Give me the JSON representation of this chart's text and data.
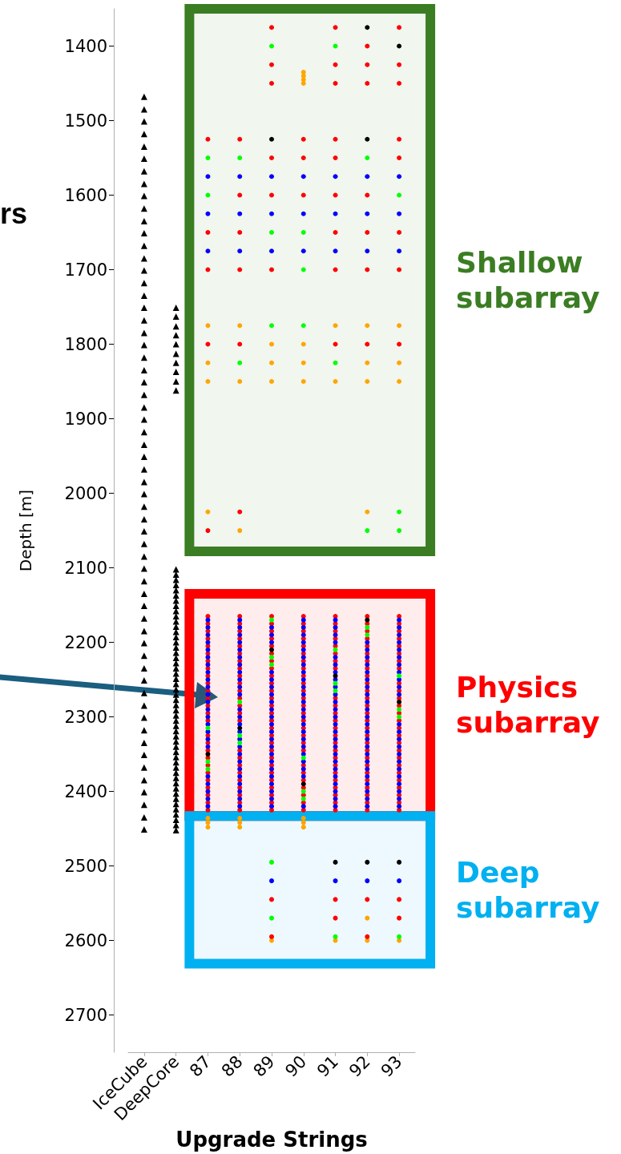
{
  "chart_data": {
    "type": "scatter",
    "xlabel": "Upgrade Strings",
    "ylabel": "Depth [m]",
    "annotations": [
      "rs"
    ],
    "categories": [
      "IceCube",
      "DeepCore",
      "87",
      "88",
      "89",
      "90",
      "91",
      "92",
      "93"
    ],
    "ylim": [
      2750,
      1350
    ],
    "yticks": [
      1400,
      1500,
      1600,
      1700,
      1800,
      1900,
      2000,
      2100,
      2200,
      2300,
      2400,
      2500,
      2600,
      2700
    ],
    "grid": false,
    "marker": "circle",
    "bands": [
      {
        "axis": "y",
        "from": 1350,
        "to": 2078,
        "label": "Shallow subarray",
        "color": "#3b7d23"
      },
      {
        "axis": "y",
        "from": 2135,
        "to": 2433,
        "label": "Physics subarray",
        "color": "#ff0000"
      },
      {
        "axis": "y",
        "from": 2433,
        "to": 2631,
        "label": "Deep subarray",
        "color": "#00b0f0"
      }
    ],
    "series": [
      {
        "color": "#000000",
        "marker": "triangle",
        "x": [
          "IceCube",
          "IceCube",
          "IceCube",
          "IceCube",
          "IceCube",
          "IceCube",
          "IceCube",
          "IceCube",
          "IceCube",
          "IceCube",
          "IceCube",
          "IceCube",
          "IceCube",
          "IceCube",
          "IceCube",
          "IceCube",
          "IceCube",
          "IceCube",
          "IceCube",
          "IceCube",
          "IceCube",
          "IceCube",
          "IceCube",
          "IceCube",
          "IceCube",
          "IceCube",
          "IceCube",
          "IceCube",
          "IceCube",
          "IceCube",
          "IceCube",
          "IceCube",
          "IceCube",
          "IceCube",
          "IceCube",
          "IceCube",
          "IceCube",
          "IceCube",
          "IceCube",
          "IceCube",
          "IceCube",
          "IceCube",
          "IceCube",
          "IceCube",
          "IceCube",
          "IceCube",
          "IceCube",
          "IceCube",
          "IceCube",
          "IceCube",
          "IceCube",
          "IceCube",
          "IceCube",
          "IceCube",
          "IceCube",
          "IceCube",
          "IceCube",
          "IceCube",
          "IceCube",
          "IceCube"
        ],
        "values": [
          1468,
          1485,
          1501,
          1518,
          1535,
          1551,
          1568,
          1585,
          1601,
          1618,
          1635,
          1651,
          1668,
          1685,
          1701,
          1718,
          1735,
          1751,
          1768,
          1785,
          1801,
          1818,
          1835,
          1851,
          1868,
          1885,
          1901,
          1918,
          1935,
          1951,
          1968,
          1985,
          2001,
          2018,
          2035,
          2051,
          2068,
          2085,
          2101,
          2118,
          2135,
          2151,
          2168,
          2185,
          2201,
          2218,
          2235,
          2251,
          2268,
          2285,
          2301,
          2318,
          2335,
          2351,
          2368,
          2385,
          2401,
          2418,
          2435,
          2451
        ]
      },
      {
        "color": "#000000",
        "marker": "triangle",
        "x": [
          "DeepCore",
          "DeepCore",
          "DeepCore",
          "DeepCore",
          "DeepCore",
          "DeepCore",
          "DeepCore",
          "DeepCore",
          "DeepCore",
          "DeepCore",
          "DeepCore",
          "DeepCore",
          "DeepCore",
          "DeepCore",
          "DeepCore",
          "DeepCore",
          "DeepCore",
          "DeepCore",
          "DeepCore",
          "DeepCore",
          "DeepCore",
          "DeepCore",
          "DeepCore",
          "DeepCore",
          "DeepCore",
          "DeepCore",
          "DeepCore",
          "DeepCore",
          "DeepCore",
          "DeepCore",
          "DeepCore",
          "DeepCore",
          "DeepCore",
          "DeepCore",
          "DeepCore",
          "DeepCore",
          "DeepCore",
          "DeepCore",
          "DeepCore",
          "DeepCore",
          "DeepCore",
          "DeepCore",
          "DeepCore",
          "DeepCore",
          "DeepCore",
          "DeepCore",
          "DeepCore",
          "DeepCore",
          "DeepCore",
          "DeepCore",
          "DeepCore",
          "DeepCore",
          "DeepCore",
          "DeepCore",
          "DeepCore",
          "DeepCore",
          "DeepCore",
          "DeepCore",
          "DeepCore",
          "DeepCore",
          "DeepCore"
        ],
        "values": [
          1751,
          1763,
          1776,
          1788,
          1800,
          1813,
          1825,
          1837,
          1850,
          1862,
          2102,
          2109,
          2116,
          2123,
          2130,
          2137,
          2144,
          2151,
          2158,
          2165,
          2172,
          2179,
          2186,
          2193,
          2200,
          2207,
          2214,
          2221,
          2228,
          2235,
          2242,
          2249,
          2256,
          2263,
          2270,
          2277,
          2284,
          2291,
          2298,
          2305,
          2312,
          2319,
          2326,
          2333,
          2340,
          2347,
          2354,
          2361,
          2368,
          2375,
          2382,
          2389,
          2396,
          2403,
          2410,
          2417,
          2424,
          2431,
          2438,
          2445,
          2452
        ]
      },
      {
        "color": "#ff0000",
        "x": [
          "87",
          "87",
          "87",
          "87",
          "87",
          "87",
          "87",
          "87",
          "87",
          "87",
          "87",
          "87",
          "87",
          "87",
          "87",
          "87",
          "87",
          "87",
          "87",
          "87",
          "87",
          "87",
          "87",
          "87",
          "87",
          "87"
        ],
        "values": [
          2165,
          2175,
          2185,
          2195,
          2205,
          2215,
          2225,
          2235,
          2245,
          2255,
          2265,
          2275,
          2285,
          2295,
          2305,
          2325,
          2335,
          2345,
          2355,
          2365,
          2375,
          2385,
          2395,
          2405,
          2415,
          2425
        ]
      },
      {
        "color": "#ff0000",
        "x": [
          "88",
          "88",
          "88",
          "88",
          "88",
          "88",
          "88",
          "88",
          "88",
          "88",
          "88",
          "88",
          "88",
          "88",
          "88",
          "88",
          "88",
          "88",
          "88",
          "88",
          "88",
          "88",
          "88",
          "88"
        ],
        "values": [
          2165,
          2175,
          2185,
          2195,
          2205,
          2215,
          2225,
          2235,
          2245,
          2255,
          2265,
          2275,
          2285,
          2295,
          2305,
          2345,
          2355,
          2365,
          2375,
          2385,
          2395,
          2405,
          2415,
          2425
        ]
      },
      {
        "color": "#ff0000",
        "x": [
          "89",
          "89",
          "89",
          "89",
          "89",
          "89",
          "89",
          "89",
          "89",
          "89",
          "89",
          "89",
          "89",
          "89",
          "89",
          "89",
          "89",
          "89",
          "89",
          "89",
          "89",
          "89",
          "89",
          "89",
          "89",
          "89",
          "89"
        ],
        "values": [
          2165,
          2175,
          2185,
          2195,
          2205,
          2215,
          2225,
          2235,
          2245,
          2255,
          2265,
          2275,
          2285,
          2295,
          2305,
          2315,
          2325,
          2335,
          2345,
          2355,
          2365,
          2375,
          2385,
          2395,
          2405,
          2415,
          2425
        ]
      },
      {
        "color": "#ff0000",
        "x": [
          "90",
          "90",
          "90",
          "90",
          "90",
          "90",
          "90",
          "90",
          "90",
          "90",
          "90",
          "90",
          "90",
          "90",
          "90",
          "90",
          "90",
          "90",
          "90",
          "90",
          "90",
          "90",
          "90",
          "90",
          "90",
          "90"
        ],
        "values": [
          2165,
          2175,
          2185,
          2195,
          2205,
          2215,
          2225,
          2235,
          2245,
          2255,
          2265,
          2275,
          2285,
          2295,
          2305,
          2315,
          2325,
          2335,
          2345,
          2365,
          2375,
          2385,
          2395,
          2405,
          2415,
          2425
        ]
      },
      {
        "color": "#ff0000",
        "x": [
          "91",
          "91",
          "91",
          "91",
          "91",
          "91",
          "91",
          "91",
          "91",
          "91",
          "91",
          "91",
          "91",
          "91",
          "91",
          "91",
          "91",
          "91",
          "91",
          "91",
          "91",
          "91",
          "91",
          "91"
        ],
        "values": [
          2165,
          2175,
          2185,
          2195,
          2205,
          2215,
          2225,
          2235,
          2275,
          2285,
          2295,
          2305,
          2315,
          2325,
          2335,
          2345,
          2355,
          2365,
          2375,
          2385,
          2395,
          2405,
          2415,
          2425
        ]
      },
      {
        "color": "#ff0000",
        "x": [
          "92",
          "92",
          "92",
          "92",
          "92",
          "92",
          "92",
          "92",
          "92",
          "92",
          "92",
          "92",
          "92",
          "92",
          "92",
          "92",
          "92",
          "92",
          "92",
          "92",
          "92",
          "92",
          "92",
          "92",
          "92",
          "92",
          "92"
        ],
        "values": [
          2165,
          2175,
          2185,
          2195,
          2205,
          2215,
          2225,
          2235,
          2245,
          2255,
          2265,
          2275,
          2285,
          2295,
          2305,
          2315,
          2325,
          2335,
          2345,
          2355,
          2365,
          2375,
          2385,
          2395,
          2405,
          2415,
          2425
        ]
      },
      {
        "color": "#ff0000",
        "x": [
          "93",
          "93",
          "93",
          "93",
          "93",
          "93",
          "93",
          "93",
          "93",
          "93",
          "93",
          "93",
          "93",
          "93",
          "93",
          "93",
          "93",
          "93",
          "93",
          "93",
          "93",
          "93",
          "93",
          "93",
          "93",
          "93"
        ],
        "values": [
          2165,
          2175,
          2185,
          2195,
          2205,
          2215,
          2225,
          2235,
          2255,
          2265,
          2275,
          2285,
          2295,
          2305,
          2315,
          2325,
          2335,
          2345,
          2355,
          2365,
          2375,
          2385,
          2395,
          2405,
          2415,
          2425
        ]
      },
      {
        "color": "#0000ff",
        "x": [
          "87",
          "87",
          "87",
          "87",
          "87",
          "87",
          "87",
          "87",
          "87",
          "87",
          "87",
          "87",
          "87",
          "87",
          "87",
          "87",
          "87",
          "87",
          "87",
          "87",
          "87",
          "87",
          "87"
        ],
        "values": [
          2170,
          2180,
          2190,
          2200,
          2210,
          2220,
          2230,
          2240,
          2250,
          2260,
          2270,
          2280,
          2290,
          2300,
          2310,
          2320,
          2330,
          2340,
          2380,
          2390,
          2400,
          2410,
          2420
        ]
      },
      {
        "color": "#0000ff",
        "x": [
          "88",
          "88",
          "88",
          "88",
          "88",
          "88",
          "88",
          "88",
          "88",
          "88",
          "88",
          "88",
          "88",
          "88",
          "88",
          "88",
          "88",
          "88",
          "88",
          "88",
          "88",
          "88",
          "88",
          "88",
          "88"
        ],
        "values": [
          2170,
          2180,
          2190,
          2200,
          2210,
          2220,
          2230,
          2240,
          2250,
          2260,
          2270,
          2290,
          2300,
          2310,
          2320,
          2330,
          2340,
          2350,
          2360,
          2370,
          2380,
          2390,
          2400,
          2410,
          2420
        ]
      },
      {
        "color": "#0000ff",
        "x": [
          "89",
          "89",
          "89",
          "89",
          "89",
          "89",
          "89",
          "89",
          "89",
          "89",
          "89",
          "89",
          "89",
          "89",
          "89",
          "89",
          "89",
          "89",
          "89",
          "89",
          "89",
          "89"
        ],
        "values": [
          2180,
          2190,
          2200,
          2240,
          2250,
          2260,
          2270,
          2280,
          2290,
          2300,
          2310,
          2320,
          2330,
          2340,
          2350,
          2360,
          2370,
          2380,
          2390,
          2400,
          2410,
          2420
        ]
      },
      {
        "color": "#0000ff",
        "x": [
          "90",
          "90",
          "90",
          "90",
          "90",
          "90",
          "90",
          "90",
          "90",
          "90",
          "90",
          "90",
          "90",
          "90",
          "90",
          "90",
          "90",
          "90",
          "90",
          "90",
          "90",
          "90",
          "90"
        ],
        "values": [
          2170,
          2180,
          2190,
          2200,
          2210,
          2220,
          2230,
          2240,
          2250,
          2260,
          2270,
          2280,
          2290,
          2300,
          2310,
          2320,
          2330,
          2340,
          2350,
          2360,
          2370,
          2380,
          2420
        ]
      },
      {
        "color": "#0000ff",
        "x": [
          "91",
          "91",
          "91",
          "91",
          "91",
          "91",
          "91",
          "91",
          "91",
          "91",
          "91",
          "91",
          "91",
          "91",
          "91",
          "91",
          "91",
          "91",
          "91",
          "91",
          "91",
          "91",
          "91",
          "91",
          "91"
        ],
        "values": [
          2170,
          2180,
          2190,
          2200,
          2220,
          2230,
          2240,
          2250,
          2260,
          2270,
          2280,
          2290,
          2300,
          2310,
          2320,
          2330,
          2340,
          2350,
          2360,
          2370,
          2380,
          2390,
          2400,
          2410,
          2420
        ]
      },
      {
        "color": "#0000ff",
        "x": [
          "92",
          "92",
          "92",
          "92",
          "92",
          "92",
          "92",
          "92",
          "92",
          "92",
          "92",
          "92",
          "92",
          "92",
          "92",
          "92",
          "92",
          "92",
          "92",
          "92",
          "92",
          "92",
          "92"
        ],
        "values": [
          2200,
          2210,
          2220,
          2230,
          2240,
          2250,
          2260,
          2270,
          2280,
          2290,
          2300,
          2310,
          2320,
          2330,
          2340,
          2350,
          2360,
          2370,
          2380,
          2390,
          2400,
          2410,
          2420
        ]
      },
      {
        "color": "#0000ff",
        "x": [
          "93",
          "93",
          "93",
          "93",
          "93",
          "93",
          "93",
          "93",
          "93",
          "93",
          "93",
          "93",
          "93",
          "93",
          "93",
          "93",
          "93",
          "93",
          "93",
          "93",
          "93",
          "93",
          "93"
        ],
        "values": [
          2170,
          2180,
          2190,
          2200,
          2210,
          2220,
          2230,
          2240,
          2250,
          2260,
          2270,
          2310,
          2320,
          2330,
          2340,
          2350,
          2360,
          2370,
          2380,
          2390,
          2400,
          2410,
          2420
        ]
      },
      {
        "color": "#ffa500",
        "x": [
          "90",
          "90",
          "90",
          "90",
          "87",
          "88",
          "91",
          "92",
          "93",
          "89",
          "90",
          "87",
          "89",
          "90",
          "92",
          "93",
          "87",
          "88",
          "89",
          "90",
          "91",
          "92",
          "93",
          "87",
          "92",
          "88",
          "87",
          "87",
          "87",
          "88",
          "88",
          "88",
          "90",
          "90",
          "90",
          "92",
          "89",
          "91",
          "92",
          "93"
        ],
        "values": [
          1435,
          1440,
          1445,
          1450,
          1775,
          1775,
          1775,
          1775,
          1775,
          1800,
          1800,
          1825,
          1825,
          1825,
          1825,
          1825,
          1850,
          1850,
          1850,
          1850,
          1850,
          1850,
          1850,
          2025,
          2025,
          2050,
          2436,
          2442,
          2448,
          2436,
          2442,
          2448,
          2436,
          2442,
          2448,
          2570,
          2600,
          2600,
          2600,
          2600
        ]
      },
      {
        "color": "#ff0000",
        "x": [
          "89",
          "91",
          "93",
          "92",
          "89",
          "91",
          "92",
          "93",
          "89",
          "91",
          "92",
          "93",
          "87",
          "88",
          "90",
          "91",
          "93",
          "89",
          "90",
          "91",
          "93",
          "88",
          "89",
          "90",
          "91",
          "92",
          "87",
          "88",
          "91",
          "92",
          "93",
          "87",
          "88",
          "89",
          "91",
          "92",
          "93",
          "87",
          "88",
          "91",
          "92",
          "93",
          "88",
          "87",
          "89",
          "91",
          "92",
          "93",
          "91",
          "93",
          "89",
          "92"
        ],
        "values": [
          1375,
          1375,
          1375,
          1400,
          1425,
          1425,
          1425,
          1425,
          1450,
          1450,
          1450,
          1450,
          1525,
          1525,
          1525,
          1525,
          1525,
          1550,
          1550,
          1550,
          1550,
          1600,
          1600,
          1600,
          1600,
          1600,
          1650,
          1650,
          1650,
          1650,
          1650,
          1700,
          1700,
          1700,
          1700,
          1700,
          1700,
          1800,
          1800,
          1800,
          1800,
          1800,
          2025,
          2050,
          2545,
          2545,
          2545,
          2545,
          2570,
          2570,
          2595,
          2595
        ]
      },
      {
        "color": "#00ff00",
        "x": [
          "89",
          "91",
          "87",
          "88",
          "92",
          "87",
          "93",
          "89",
          "90",
          "90",
          "89",
          "90",
          "88",
          "91",
          "93",
          "92",
          "93",
          "87",
          "87",
          "87",
          "88",
          "88",
          "88",
          "89",
          "89",
          "89",
          "90",
          "90",
          "90",
          "91",
          "91",
          "91",
          "92",
          "92",
          "93",
          "93",
          "93",
          "89",
          "89",
          "91",
          "93"
        ],
        "values": [
          1400,
          1400,
          1550,
          1550,
          1550,
          1600,
          1600,
          1650,
          1650,
          1700,
          1775,
          1775,
          1825,
          1825,
          2025,
          2050,
          2050,
          2315,
          2360,
          2370,
          2280,
          2325,
          2335,
          2170,
          2220,
          2230,
          2355,
          2400,
          2410,
          2210,
          2255,
          2265,
          2180,
          2190,
          2245,
          2290,
          2300,
          2495,
          2570,
          2595,
          2595
        ]
      },
      {
        "color": "#0000ff",
        "x": [
          "87",
          "88",
          "89",
          "90",
          "91",
          "92",
          "93",
          "87",
          "88",
          "89",
          "90",
          "91",
          "92",
          "93",
          "87",
          "88",
          "89",
          "90",
          "91",
          "92",
          "93",
          "89",
          "91",
          "92",
          "93"
        ],
        "values": [
          1575,
          1575,
          1575,
          1575,
          1575,
          1575,
          1575,
          1625,
          1625,
          1625,
          1625,
          1625,
          1625,
          1625,
          1675,
          1675,
          1675,
          1675,
          1675,
          1675,
          1675,
          2520,
          2520,
          2520,
          2520
        ]
      },
      {
        "color": "#000000",
        "x": [
          "92",
          "93",
          "89",
          "92",
          "87",
          "88",
          "89",
          "90",
          "91",
          "92",
          "93",
          "91",
          "92",
          "93"
        ],
        "values": [
          1375,
          1400,
          1525,
          1525,
          2350,
          2315,
          2210,
          2390,
          2245,
          2170,
          2280,
          2495,
          2495,
          2495
        ]
      }
    ]
  }
}
